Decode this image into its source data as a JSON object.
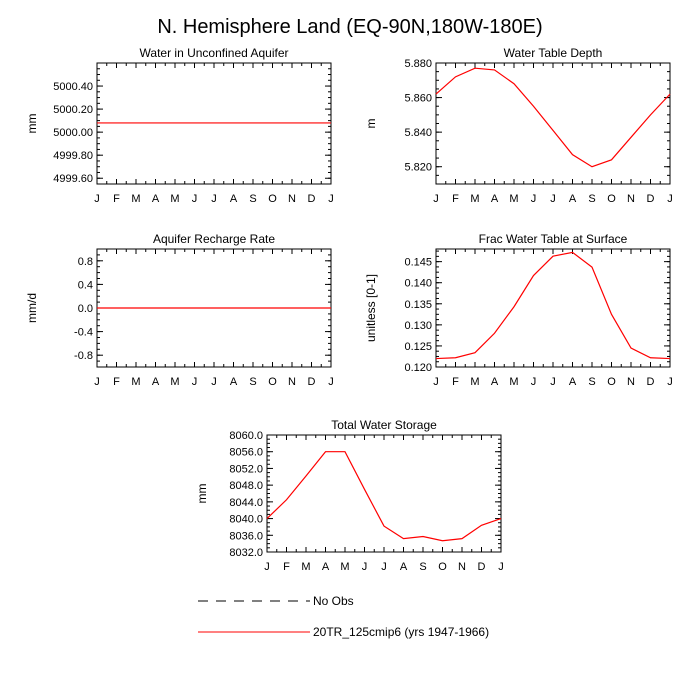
{
  "figure_title": "N. Hemisphere Land (EQ-90N,180W-180E)",
  "month_labels": [
    "J",
    "F",
    "M",
    "A",
    "M",
    "J",
    "J",
    "A",
    "S",
    "O",
    "N",
    "D",
    "J"
  ],
  "legend": {
    "entries": [
      {
        "label": "No Obs",
        "style": "dashed",
        "color": "#000000"
      },
      {
        "label": "20TR_125cmip6 (yrs 1947-1966)",
        "style": "solid",
        "color": "#ff0000"
      }
    ]
  },
  "series_color": "#ff0000",
  "chart_data": [
    {
      "type": "line",
      "title": "Water in Unconfined Aquifer",
      "ylabel": "mm",
      "ylim": [
        4999.55,
        5000.6
      ],
      "yticks": [
        4999.6,
        4999.8,
        5000.0,
        5000.2,
        5000.4
      ],
      "ytick_labels": [
        "4999.60",
        "4999.80",
        "5000.00",
        "5000.20",
        "5000.40"
      ],
      "values": [
        5000.08,
        5000.08,
        5000.08,
        5000.08,
        5000.08,
        5000.08,
        5000.08,
        5000.08,
        5000.08,
        5000.08,
        5000.08,
        5000.08,
        5000.08
      ]
    },
    {
      "type": "line",
      "title": "Water Table Depth",
      "ylabel": "m",
      "ylim": [
        5.81,
        5.88
      ],
      "yticks": [
        5.82,
        5.84,
        5.86,
        5.88
      ],
      "ytick_labels": [
        "5.820",
        "5.840",
        "5.860",
        "5.880"
      ],
      "values": [
        5.862,
        5.872,
        5.877,
        5.876,
        5.868,
        5.855,
        5.841,
        5.827,
        5.82,
        5.824,
        5.837,
        5.85,
        5.862
      ]
    },
    {
      "type": "line",
      "title": "Aquifer Recharge Rate",
      "ylabel": "mm/d",
      "ylim": [
        -1.0,
        1.0
      ],
      "yticks": [
        -0.8,
        -0.4,
        0.0,
        0.4,
        0.8
      ],
      "ytick_labels": [
        "-0.8",
        "-0.4",
        "0.0",
        "0.4",
        "0.8"
      ],
      "values": [
        0,
        0,
        0,
        0,
        0,
        0,
        0,
        0,
        0,
        0,
        0,
        0,
        0
      ]
    },
    {
      "type": "line",
      "title": "Frac Water Table at Surface",
      "ylabel": "unitless [0-1]",
      "ylim": [
        0.12,
        0.148
      ],
      "yticks": [
        0.12,
        0.125,
        0.13,
        0.135,
        0.14,
        0.145
      ],
      "ytick_labels": [
        "0.120",
        "0.125",
        "0.130",
        "0.135",
        "0.140",
        "0.145"
      ],
      "values": [
        0.122,
        0.1222,
        0.1234,
        0.128,
        0.1343,
        0.1417,
        0.1463,
        0.1472,
        0.1437,
        0.1325,
        0.1245,
        0.1222,
        0.122
      ]
    },
    {
      "type": "line",
      "title": "Total Water Storage",
      "ylabel": "mm",
      "ylim": [
        8032.0,
        8060.0
      ],
      "yticks": [
        8032,
        8036,
        8040,
        8044,
        8048,
        8052,
        8056,
        8060
      ],
      "ytick_labels": [
        "8032.0",
        "8036.0",
        "8040.0",
        "8044.0",
        "8048.0",
        "8052.0",
        "8056.0",
        "8060.0"
      ],
      "values": [
        8040.0,
        8044.5,
        8050.2,
        8056.0,
        8056.0,
        8047.0,
        8038.2,
        8035.2,
        8035.7,
        8034.7,
        8035.2,
        8038.4,
        8040.0
      ]
    }
  ]
}
